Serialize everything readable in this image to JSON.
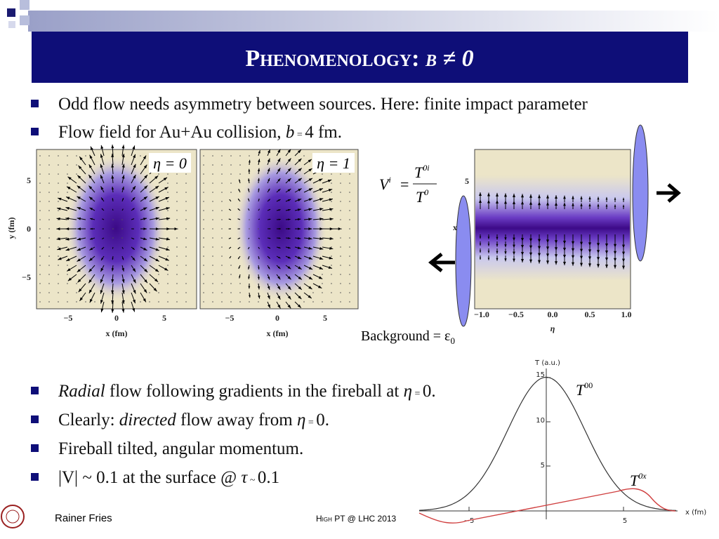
{
  "header": {
    "title": "Phenomenology:",
    "title_symbol": "b ≠ 0"
  },
  "bullets_top": [
    [
      "Odd flow needs asymmetry between sources. Here: finite impact parameter"
    ],
    [
      "Flow field for Au+Au collision, ",
      "b",
      " = ",
      "4 fm."
    ]
  ],
  "bullets_bottom": [
    [
      "Radial",
      " flow following gradients in the fireball at ",
      "η",
      " = ",
      "0."
    ],
    [
      "Clearly: ",
      "directed",
      " flow away from ",
      "η",
      " = ",
      "0."
    ],
    [
      "Fireball tilted, angular momentum."
    ],
    [
      "|V| ~ 0.1 at the surface @ ",
      "τ",
      " ~ ",
      "0.1"
    ]
  ],
  "flow_plots": {
    "panels": [
      {
        "label": "η = 0"
      },
      {
        "label": "η = 1"
      }
    ],
    "y_label": "y (fm)",
    "x_label": "x (fm)",
    "y_ticks": [
      "5",
      "0",
      "−5"
    ],
    "x_ticks": [
      "−5",
      "0",
      "5"
    ]
  },
  "tilted_plot": {
    "formula": {
      "lhs": "V",
      "lhs_sup": "i",
      "eq": "=",
      "num": "T",
      "num_sup": "0i",
      "den": "T",
      "den_sup": "0"
    },
    "y_label": "x",
    "y_ticks": [
      "5"
    ],
    "x_label": "η",
    "x_ticks": [
      "−1.0",
      "−0.5",
      "0.0",
      "0.5",
      "1.0"
    ],
    "background_label": "Background = ε",
    "background_sub": "0"
  },
  "profile_plot": {
    "y_label": "T (a.u.)",
    "x_label": "x (fm)",
    "y_ticks": [
      "15",
      "10",
      "5"
    ],
    "x_ticks": [
      "−5",
      "5"
    ],
    "curves": [
      {
        "name": "T",
        "sup": "00"
      },
      {
        "name": "T",
        "sup": "0x"
      }
    ]
  },
  "footer": {
    "author": "Rainer Fries",
    "event": "High PT @ LHC 2013"
  }
}
